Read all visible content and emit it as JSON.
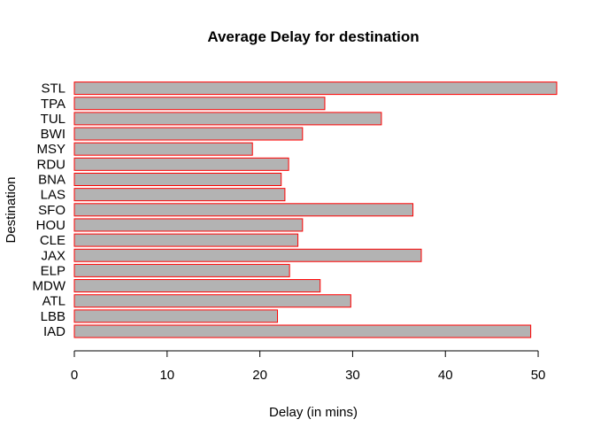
{
  "chart_data": {
    "type": "bar",
    "orientation": "horizontal",
    "title": "Average Delay for destination",
    "xlabel": "Delay (in mins)",
    "ylabel": "Destination",
    "categories": [
      "IAD",
      "LBB",
      "ATL",
      "MDW",
      "ELP",
      "JAX",
      "CLE",
      "HOU",
      "SFO",
      "LAS",
      "BNA",
      "RDU",
      "MSY",
      "BWI",
      "TUL",
      "TPA",
      "STL"
    ],
    "values": [
      49.2,
      21.9,
      29.8,
      26.5,
      23.2,
      37.4,
      24.1,
      24.6,
      36.5,
      22.7,
      22.3,
      23.1,
      19.2,
      24.6,
      33.1,
      27.0,
      52.0
    ],
    "xlim": [
      0,
      52
    ],
    "xticks": [
      "0",
      "10",
      "20",
      "30",
      "40",
      "50"
    ],
    "grid": false,
    "legend": "none",
    "colors": {
      "bar_fill": "#b3b3b3",
      "bar_border": "#ff0000"
    }
  }
}
